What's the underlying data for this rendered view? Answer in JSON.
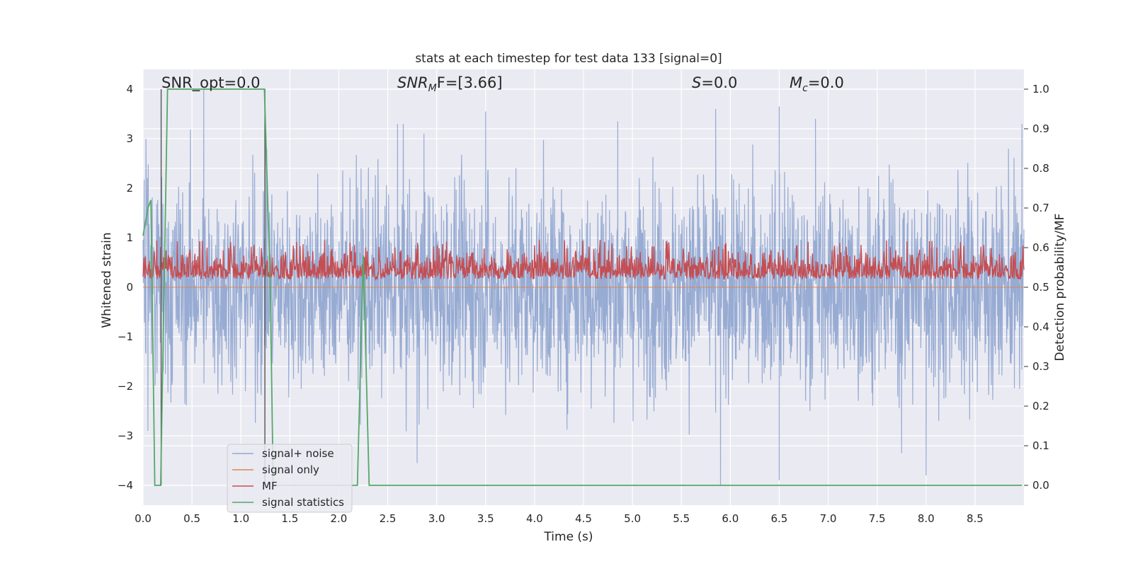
{
  "chart_data": {
    "type": "line",
    "title": "stats at each timestep for test data 133 [signal=0]",
    "xlabel": "Time (s)",
    "ylabel": "Whitened strain",
    "y2label": "Detection probability/MF",
    "xlim": [
      0,
      9
    ],
    "ylim": [
      -4.4,
      4.4
    ],
    "y2lim": [
      -0.05,
      1.05
    ],
    "xticks": [
      "0.0",
      "0.5",
      "1.0",
      "1.5",
      "2.0",
      "2.5",
      "3.0",
      "3.5",
      "4.0",
      "4.5",
      "5.0",
      "5.5",
      "6.0",
      "6.5",
      "7.0",
      "7.5",
      "8.0",
      "8.5"
    ],
    "yticks": [
      "−4",
      "−3",
      "−2",
      "−1",
      "0",
      "1",
      "2",
      "3",
      "4"
    ],
    "y2ticks": [
      "0.0",
      "0.1",
      "0.2",
      "0.3",
      "0.4",
      "0.5",
      "0.6",
      "0.7",
      "0.8",
      "0.9",
      "1.0"
    ],
    "grid": true,
    "legend_position": "lower-left",
    "annotations": {
      "snr_opt": "SNR_opt=0.0",
      "snr_mf_main": "SNR",
      "snr_mf_sub": "M",
      "snr_mf_rest": "F=[3.66]",
      "s_main": "S",
      "s_rest": "=0.0",
      "mc_main": "M",
      "mc_sub": "c",
      "mc_rest": "=0.0"
    },
    "series": [
      {
        "name": "signal+ noise",
        "color": "#92a8d1",
        "axis": "left",
        "description_values": "dense noise between about -2.5 and 2.5 with spikes reaching about -4.0 and 4.0",
        "peaks": [
          [
            0.03,
            3.0
          ],
          [
            0.62,
            4.0
          ],
          [
            1.25,
            3.35
          ],
          [
            2.6,
            3.3
          ],
          [
            2.87,
            3.1
          ],
          [
            3.5,
            3.55
          ],
          [
            4.85,
            3.35
          ],
          [
            5.85,
            3.6
          ],
          [
            6.5,
            3.65
          ],
          [
            6.87,
            3.4
          ],
          [
            8.98,
            3.3
          ]
        ],
        "troughs": [
          [
            0.05,
            -2.9
          ],
          [
            2.8,
            -3.55
          ],
          [
            5.9,
            -4.0
          ],
          [
            6.5,
            -3.9
          ],
          [
            7.75,
            -3.35
          ],
          [
            8.0,
            -3.8
          ]
        ]
      },
      {
        "name": "signal only",
        "color": "#dd8452",
        "axis": "left",
        "values_constant": 0
      },
      {
        "name": "MF",
        "color": "#c44e52",
        "axis": "right",
        "range": [
          0.5,
          0.62
        ]
      },
      {
        "name": "signal statistics",
        "color": "#55a868",
        "axis": "right",
        "x": [
          0.0,
          0.05,
          0.08,
          0.12,
          0.18,
          0.25,
          0.26,
          1.24,
          1.3,
          1.33,
          2.19,
          2.25,
          2.31,
          2.36,
          8.98
        ],
        "y": [
          0.63,
          0.7,
          0.72,
          0.0,
          0.0,
          1.0,
          1.0,
          1.0,
          0.5,
          0.0,
          0.0,
          0.58,
          0.0,
          0.0,
          0.0
        ]
      }
    ],
    "markers_x": [
      0.185,
      1.245
    ]
  },
  "colors": {
    "plot_bg": "#eaeaf2",
    "grid": "#ffffff",
    "marker_line": "#555555"
  }
}
